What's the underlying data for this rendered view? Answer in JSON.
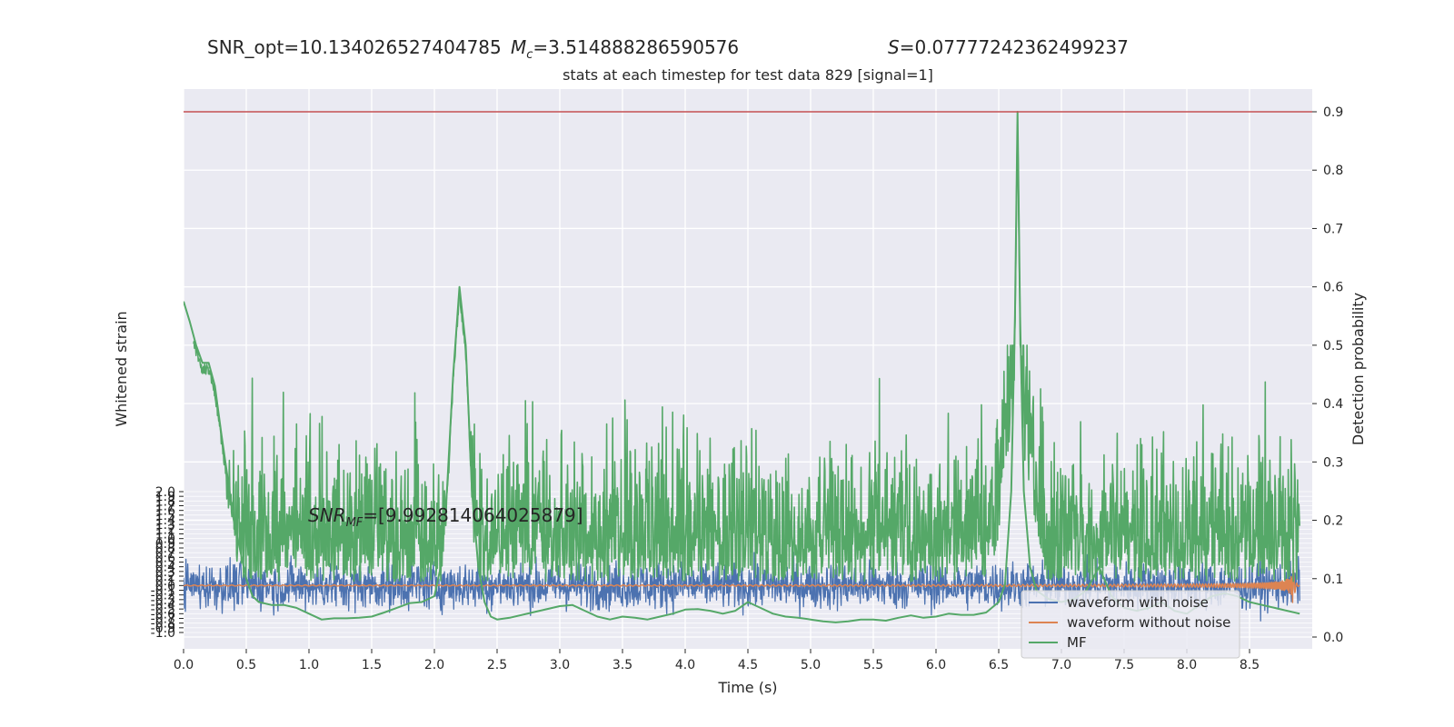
{
  "chart_data": {
    "type": "line",
    "header": {
      "snr_opt": "SNR_opt=10.134026527404785",
      "mc_symbol": "M",
      "mc_sub": "c",
      "mc_value": "=3.514888286590576",
      "s_symbol": "S",
      "s_value": "=0.07777242362499237"
    },
    "title": "stats at each timestep for test data 829 [signal=1]",
    "xlabel": "Time (s)",
    "ylabel_left": "Whitened strain",
    "ylabel_right": "Detection probability",
    "xlim": [
      0,
      9
    ],
    "ylim_left": [
      -1.0,
      2.0
    ],
    "ylim_right": [
      0,
      0.9
    ],
    "x_ticks": [
      "0.0",
      "0.5",
      "1.0",
      "1.5",
      "2.0",
      "2.5",
      "3.0",
      "3.5",
      "4.0",
      "4.5",
      "5.0",
      "5.5",
      "6.0",
      "6.5",
      "7.0",
      "7.5",
      "8.0",
      "8.5"
    ],
    "left_ticks": [
      "-1.0",
      "-0.9",
      "-0.8",
      "-0.7",
      "-0.6",
      "-0.5",
      "-0.4",
      "-0.3",
      "-0.2",
      "-0.1",
      "0.0",
      "0.1",
      "0.2",
      "0.3",
      "0.4",
      "0.5",
      "0.6",
      "0.7",
      "0.8",
      "0.9",
      "1.0",
      "1.1",
      "1.2",
      "1.3",
      "1.4",
      "1.5",
      "1.6",
      "1.7",
      "1.8",
      "1.9",
      "2.0"
    ],
    "right_ticks": [
      "0.0",
      "0.1",
      "0.2",
      "0.3",
      "0.4",
      "0.5",
      "0.6",
      "0.7",
      "0.8",
      "0.9"
    ],
    "threshold": 0.9,
    "annotation": {
      "prefix": "SNR",
      "sub": "MF",
      "value": "=[9.992814064025879]"
    },
    "legend": {
      "placement": "lower-right",
      "entries": [
        {
          "label": "waveform with noise",
          "color": "#4c72b0"
        },
        {
          "label": "waveform without noise",
          "color": "#dd8452"
        },
        {
          "label": "MF",
          "color": "#55a868"
        }
      ]
    },
    "series": [
      {
        "name": "MF",
        "axis": "right",
        "color": "#55a868",
        "x": [
          0.0,
          0.05,
          0.1,
          0.15,
          0.2,
          0.25,
          0.3,
          0.4,
          0.5,
          0.55,
          0.6,
          0.7,
          0.8,
          0.9,
          1.0,
          1.1,
          1.2,
          1.3,
          1.4,
          1.5,
          1.6,
          1.7,
          1.8,
          1.9,
          2.0,
          2.05,
          2.1,
          2.15,
          2.2,
          2.25,
          2.3,
          2.35,
          2.4,
          2.45,
          2.5,
          2.6,
          2.8,
          3.0,
          3.1,
          3.2,
          3.3,
          3.4,
          3.5,
          3.6,
          3.7,
          3.8,
          3.9,
          4.0,
          4.1,
          4.2,
          4.3,
          4.4,
          4.5,
          4.6,
          4.7,
          4.8,
          4.9,
          5.0,
          5.1,
          5.2,
          5.3,
          5.4,
          5.5,
          5.6,
          5.7,
          5.8,
          5.9,
          6.0,
          6.1,
          6.2,
          6.3,
          6.4,
          6.5,
          6.55,
          6.6,
          6.63,
          6.65,
          6.67,
          6.7,
          6.75,
          6.8,
          6.9,
          7.0,
          7.1,
          7.2,
          7.3,
          7.4,
          7.5,
          7.6,
          7.7,
          7.8,
          7.9,
          8.0,
          8.1,
          8.2,
          8.3,
          8.4,
          8.5,
          8.6,
          8.7,
          8.8,
          8.9
        ],
        "y": [
          0.575,
          0.54,
          0.5,
          0.47,
          0.47,
          0.43,
          0.35,
          0.2,
          0.1,
          0.07,
          0.06,
          0.055,
          0.055,
          0.05,
          0.04,
          0.03,
          0.032,
          0.032,
          0.033,
          0.035,
          0.042,
          0.05,
          0.058,
          0.06,
          0.07,
          0.12,
          0.25,
          0.45,
          0.6,
          0.5,
          0.25,
          0.12,
          0.06,
          0.035,
          0.03,
          0.033,
          0.043,
          0.053,
          0.055,
          0.045,
          0.035,
          0.03,
          0.035,
          0.033,
          0.03,
          0.035,
          0.04,
          0.047,
          0.048,
          0.045,
          0.04,
          0.045,
          0.06,
          0.05,
          0.04,
          0.035,
          0.033,
          0.03,
          0.027,
          0.025,
          0.027,
          0.03,
          0.03,
          0.028,
          0.033,
          0.037,
          0.033,
          0.035,
          0.04,
          0.038,
          0.038,
          0.042,
          0.06,
          0.09,
          0.25,
          0.55,
          0.9,
          0.55,
          0.25,
          0.12,
          0.08,
          0.065,
          0.06,
          0.065,
          0.08,
          0.12,
          0.07,
          0.05,
          0.045,
          0.05,
          0.06,
          0.045,
          0.04,
          0.055,
          0.07,
          0.075,
          0.07,
          0.06,
          0.055,
          0.05,
          0.045,
          0.04
        ],
        "noise_amplitude": 0.1
      },
      {
        "name": "waveform with noise",
        "axis": "left",
        "color": "#4c72b0",
        "x": [
          0.0,
          8.9
        ],
        "y": [
          0.0,
          0.0
        ],
        "noise_amplitude": 0.25
      },
      {
        "name": "waveform without noise",
        "axis": "left",
        "color": "#dd8452",
        "chirp": {
          "start": 0.0,
          "merger": 8.85,
          "end": 8.9,
          "peak_amplitude": 0.4
        },
        "x": [
          0.0,
          7.0,
          8.0,
          8.5,
          8.85,
          8.9
        ],
        "y": [
          0.0,
          0.01,
          0.07,
          0.15,
          0.4,
          0.0
        ]
      }
    ],
    "grid": true
  }
}
